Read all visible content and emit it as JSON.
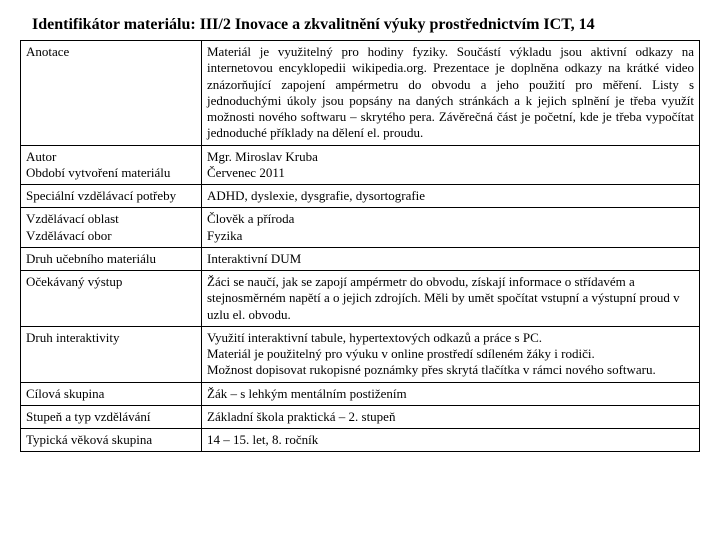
{
  "title": "Identifikátor materiálu: III/2 Inovace a zkvalitnění výuky prostřednictvím  ICT, 14",
  "rows": [
    {
      "label": "Anotace",
      "value": "Materiál je využitelný pro hodiny fyziky. Součástí výkladu jsou aktivní odkazy na internetovou encyklopedii wikipedia.org. Prezentace je doplněna odkazy na krátké video znázorňující zapojení ampérmetru do obvodu a jeho použití pro měření. Listy s jednoduchými úkoly jsou popsány na daných stránkách a k jejich splnění je třeba využít možnosti nového softwaru – skrytého pera. Závěrečná část je početní, kde je třeba vypočítat jednoduché příklady na dělení el. proudu.",
      "justify": true
    },
    {
      "label": "Autor\nObdobí vytvoření materiálu",
      "value": "Mgr. Miroslav Kruba\nČervenec 2011"
    },
    {
      "label": "Speciální vzdělávací potřeby",
      "value": "ADHD, dyslexie, dysgrafie, dysortografie"
    },
    {
      "label": "Vzdělávací oblast\nVzdělávací obor",
      "value": "Člověk a příroda\nFyzika"
    },
    {
      "label": "Druh učebního materiálu",
      "value": "Interaktivní DUM"
    },
    {
      "label": "Očekávaný výstup",
      "value": "Žáci se naučí, jak se zapojí ampérmetr do obvodu, získají informace o střídavém a stejnosměrném napětí a o  jejich zdrojích. Měli by umět spočítat vstupní a výstupní proud v uzlu el. obvodu."
    },
    {
      "label": "Druh interaktivity",
      "value": "Využití interaktivní tabule, hypertextových odkazů a práce s PC.\nMateriál je použitelný pro výuku v online prostředí sdíleném žáky i rodiči.\nMožnost dopisovat rukopisné poznámky přes skrytá tlačítka v rámci nového softwaru."
    },
    {
      "label": "Cílová skupina",
      "value": "Žák – s lehkým mentálním postižením"
    },
    {
      "label": "Stupeň a typ vzdělávání",
      "value": "Základní škola praktická – 2. stupeň"
    },
    {
      "label": "Typická věková skupina",
      "value": "14 – 15. let, 8. ročník"
    }
  ]
}
